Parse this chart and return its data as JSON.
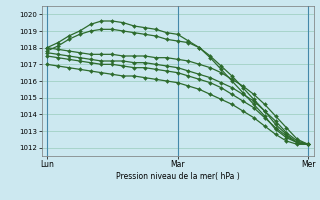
{
  "background_color": "#cce8f0",
  "grid_color": "#99ccbb",
  "line_color": "#2d6b2d",
  "xlabel": "Pression niveau de la mer( hPa )",
  "ylim": [
    1011.5,
    1020.5
  ],
  "yticks": [
    1012,
    1013,
    1014,
    1015,
    1016,
    1017,
    1018,
    1019,
    1020
  ],
  "xtick_labels": [
    "Lun",
    "Mar",
    "Mer"
  ],
  "xtick_pos": [
    0,
    12,
    24
  ],
  "lines": [
    {
      "x": [
        0,
        1,
        2,
        3,
        4,
        5,
        6,
        7,
        8,
        9,
        10,
        11,
        12,
        13,
        14,
        15,
        16,
        17,
        18,
        19,
        20,
        21,
        22,
        23,
        24
      ],
      "y": [
        1018.0,
        1018.3,
        1018.7,
        1019.0,
        1019.4,
        1019.6,
        1019.6,
        1019.5,
        1019.3,
        1019.2,
        1019.1,
        1018.9,
        1018.8,
        1018.4,
        1018.0,
        1017.4,
        1016.7,
        1016.0,
        1015.3,
        1014.6,
        1013.9,
        1013.1,
        1012.6,
        1012.3,
        1012.2
      ]
    },
    {
      "x": [
        0,
        1,
        2,
        3,
        4,
        5,
        6,
        7,
        8,
        9,
        10,
        11,
        12,
        13,
        14,
        15,
        16,
        17,
        18,
        19,
        20,
        21,
        22,
        23,
        24
      ],
      "y": [
        1017.8,
        1018.1,
        1018.5,
        1018.8,
        1019.0,
        1019.1,
        1019.1,
        1019.0,
        1018.9,
        1018.8,
        1018.7,
        1018.5,
        1018.4,
        1018.3,
        1018.0,
        1017.5,
        1016.9,
        1016.3,
        1015.6,
        1014.9,
        1014.2,
        1013.4,
        1012.8,
        1012.3,
        1012.2
      ]
    },
    {
      "x": [
        0,
        1,
        2,
        3,
        4,
        5,
        6,
        7,
        8,
        9,
        10,
        11,
        12,
        13,
        14,
        15,
        16,
        17,
        18,
        19,
        20,
        21,
        22,
        23,
        24
      ],
      "y": [
        1018.0,
        1017.9,
        1017.8,
        1017.7,
        1017.6,
        1017.6,
        1017.6,
        1017.5,
        1017.5,
        1017.5,
        1017.4,
        1017.4,
        1017.3,
        1017.2,
        1017.0,
        1016.8,
        1016.5,
        1016.1,
        1015.7,
        1015.2,
        1014.6,
        1013.9,
        1013.2,
        1012.5,
        1012.2
      ]
    },
    {
      "x": [
        0,
        1,
        2,
        3,
        4,
        5,
        6,
        7,
        8,
        9,
        10,
        11,
        12,
        13,
        14,
        15,
        16,
        17,
        18,
        19,
        20,
        21,
        22,
        23,
        24
      ],
      "y": [
        1017.7,
        1017.6,
        1017.5,
        1017.4,
        1017.3,
        1017.2,
        1017.2,
        1017.2,
        1017.1,
        1017.1,
        1017.0,
        1016.9,
        1016.8,
        1016.6,
        1016.4,
        1016.2,
        1015.9,
        1015.6,
        1015.2,
        1014.8,
        1014.2,
        1013.6,
        1012.9,
        1012.4,
        1012.2
      ]
    },
    {
      "x": [
        0,
        1,
        2,
        3,
        4,
        5,
        6,
        7,
        8,
        9,
        10,
        11,
        12,
        13,
        14,
        15,
        16,
        17,
        18,
        19,
        20,
        21,
        22,
        23,
        24
      ],
      "y": [
        1017.5,
        1017.4,
        1017.3,
        1017.2,
        1017.1,
        1017.0,
        1017.0,
        1016.9,
        1016.8,
        1016.8,
        1016.7,
        1016.6,
        1016.5,
        1016.3,
        1016.1,
        1015.9,
        1015.6,
        1015.2,
        1014.8,
        1014.4,
        1013.8,
        1013.2,
        1012.7,
        1012.3,
        1012.2
      ]
    },
    {
      "x": [
        0,
        1,
        2,
        3,
        4,
        5,
        6,
        7,
        8,
        9,
        10,
        11,
        12,
        13,
        14,
        15,
        16,
        17,
        18,
        19,
        20,
        21,
        22,
        23,
        24
      ],
      "y": [
        1017.0,
        1016.9,
        1016.8,
        1016.7,
        1016.6,
        1016.5,
        1016.4,
        1016.3,
        1016.3,
        1016.2,
        1016.1,
        1016.0,
        1015.9,
        1015.7,
        1015.5,
        1015.2,
        1014.9,
        1014.6,
        1014.2,
        1013.8,
        1013.3,
        1012.8,
        1012.4,
        1012.2,
        1012.2
      ]
    }
  ],
  "figsize": [
    3.2,
    2.0
  ],
  "dpi": 100
}
